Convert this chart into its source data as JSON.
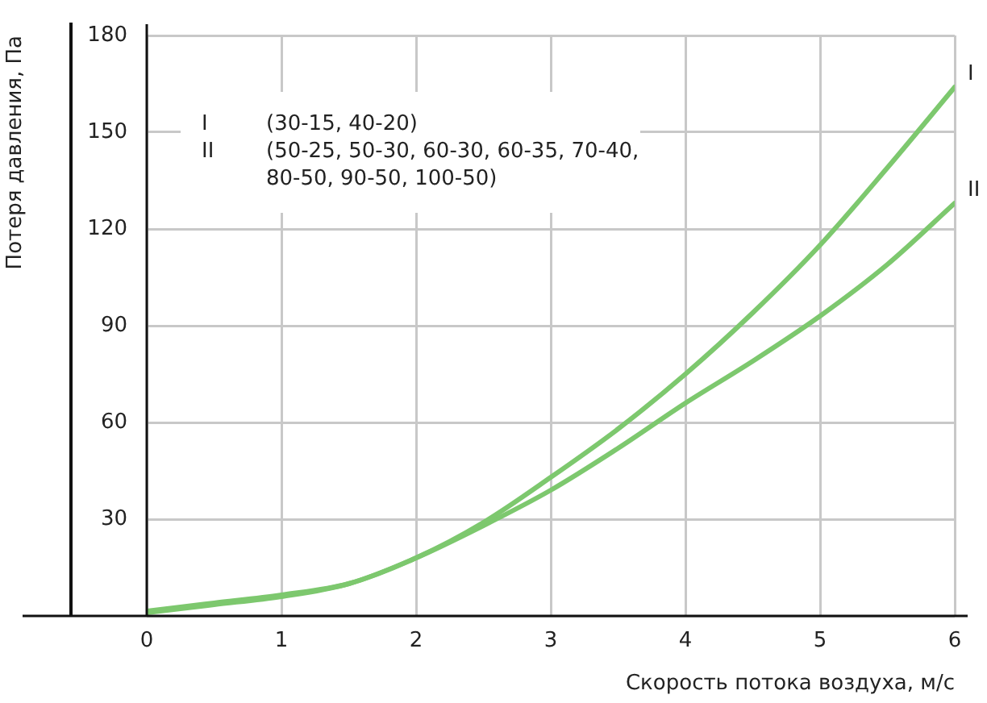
{
  "chart_data": {
    "type": "line",
    "xlabel": "Скорость потока воздуха, м/с",
    "ylabel": "Потеря давления, Па",
    "x": [
      0,
      0.5,
      1,
      1.5,
      2,
      2.5,
      3,
      3.5,
      4,
      4.5,
      5,
      5.5,
      6
    ],
    "series": [
      {
        "name": "I",
        "color": "#7dc86e",
        "values": [
          1,
          3.5,
          6,
          10,
          18,
          29,
          43,
          58,
          75,
          94,
          115,
          139,
          164
        ]
      },
      {
        "name": "II",
        "color": "#7dc86e",
        "values": [
          1.5,
          4,
          6.5,
          10,
          18,
          28,
          39,
          52,
          66,
          79,
          93,
          109,
          128
        ]
      }
    ],
    "annotations": [
      "(30-15, 40-20)",
      "(50-25, 50-30, 60-30, 60-35, 70-40, 80-50, 90-50, 100-50)"
    ],
    "xlim": [
      0,
      6
    ],
    "xticks": [
      0,
      1,
      2,
      3,
      4,
      5,
      6
    ],
    "ylim": [
      0,
      180
    ],
    "yticks": [
      {
        "value": 0,
        "label": null
      },
      30,
      60,
      90,
      120,
      150,
      180
    ],
    "grid": true,
    "marker": "none",
    "line_style": "solid"
  }
}
